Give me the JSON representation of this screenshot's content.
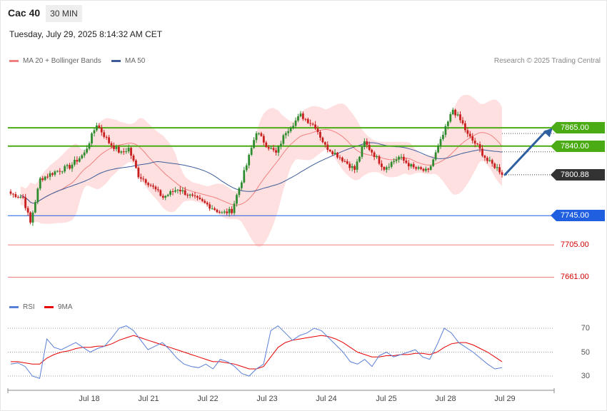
{
  "header": {
    "title": "Cac 40",
    "timeframe": "30 MIN",
    "datetime": "Tuesday, July 29, 2025 8:14:32 AM CET"
  },
  "legend": {
    "ma20": "MA 20 + Bollinger Bands",
    "ma50": "MA 50",
    "credit": "Research © 2025 Trading Central"
  },
  "colors": {
    "up": "#2e8b2e",
    "down": "#c81e1e",
    "band": "#ffe0e0",
    "ma20": "#f08080",
    "ma50": "#3d5c99",
    "resistance": "#4aab14",
    "support": "#1f5fe0",
    "target": "#f08080",
    "arrow": "#2d5fa0",
    "rsi": "#5a7fd6",
    "rsi_ma": "#e60000"
  },
  "chart_data": [
    {
      "type": "candlestick",
      "instrument": "Cac 40",
      "interval": "30 MIN",
      "ylim": [
        7640,
        7945
      ],
      "x_labels": [
        "Jul 18",
        "Jul 21",
        "Jul 22",
        "Jul 23",
        "Jul 24",
        "Jul 25",
        "Jul 28",
        "Jul 29"
      ],
      "levels": [
        {
          "value": 7865.0,
          "label": "7865.00",
          "kind": "resistance"
        },
        {
          "value": 7840.0,
          "label": "7840.00",
          "kind": "resistance"
        },
        {
          "value": 7800.88,
          "label": "7800.88",
          "kind": "last-price"
        },
        {
          "value": 7745.0,
          "label": "7745.00",
          "kind": "support"
        },
        {
          "value": 7705.0,
          "label": "7705.00",
          "kind": "target"
        },
        {
          "value": 7661.0,
          "label": "7661.00",
          "kind": "target"
        }
      ],
      "projection": {
        "from_value": 7800.88,
        "to_value": 7865.0
      },
      "close_path": [
        [
          0,
          7775
        ],
        [
          5,
          7770
        ],
        [
          8,
          7735
        ],
        [
          12,
          7795
        ],
        [
          18,
          7805
        ],
        [
          24,
          7812
        ],
        [
          30,
          7830
        ],
        [
          35,
          7870
        ],
        [
          40,
          7845
        ],
        [
          45,
          7830
        ],
        [
          48,
          7837
        ],
        [
          52,
          7800
        ],
        [
          56,
          7790
        ],
        [
          62,
          7770
        ],
        [
          68,
          7782
        ],
        [
          74,
          7770
        ],
        [
          80,
          7760
        ],
        [
          86,
          7748
        ],
        [
          90,
          7752
        ],
        [
          96,
          7814
        ],
        [
          100,
          7860
        ],
        [
          104,
          7842
        ],
        [
          108,
          7830
        ],
        [
          112,
          7860
        ],
        [
          118,
          7882
        ],
        [
          124,
          7867
        ],
        [
          128,
          7840
        ],
        [
          134,
          7825
        ],
        [
          140,
          7808
        ],
        [
          144,
          7845
        ],
        [
          148,
          7828
        ],
        [
          152,
          7810
        ],
        [
          158,
          7825
        ],
        [
          164,
          7810
        ],
        [
          170,
          7805
        ],
        [
          176,
          7855
        ],
        [
          180,
          7890
        ],
        [
          184,
          7870
        ],
        [
          186,
          7855
        ],
        [
          190,
          7840
        ],
        [
          194,
          7820
        ],
        [
          198,
          7810
        ],
        [
          200,
          7803
        ]
      ]
    },
    {
      "type": "line",
      "title": "RSI",
      "series": [
        {
          "name": "RSI"
        },
        {
          "name": "9MA"
        }
      ],
      "ticks": [
        70,
        50,
        30
      ],
      "ylim": [
        20,
        80
      ],
      "rsi": [
        40,
        41,
        38,
        30,
        28,
        61,
        54,
        52,
        55,
        58,
        54,
        50,
        53,
        55,
        62,
        70,
        72,
        68,
        60,
        52,
        55,
        58,
        52,
        45,
        40,
        38,
        37,
        40,
        36,
        44,
        42,
        38,
        32,
        30,
        36,
        40,
        68,
        72,
        66,
        60,
        64,
        66,
        70,
        68,
        62,
        56,
        50,
        42,
        40,
        44,
        38,
        47,
        50,
        46,
        48,
        50,
        52,
        46,
        44,
        56,
        70,
        66,
        58,
        54,
        50,
        45,
        40,
        36,
        37
      ],
      "rsi_ma": [
        42,
        42,
        41,
        40,
        40,
        45,
        48,
        50,
        51,
        53,
        54,
        54,
        55,
        55,
        57,
        60,
        62,
        64,
        62,
        60,
        58,
        56,
        54,
        52,
        50,
        48,
        46,
        44,
        42,
        42,
        41,
        40,
        38,
        36,
        36,
        38,
        46,
        54,
        58,
        60,
        61,
        62,
        63,
        64,
        63,
        61,
        58,
        54,
        50,
        48,
        46,
        46,
        47,
        47,
        48,
        48,
        49,
        49,
        48,
        50,
        54,
        57,
        58,
        58,
        56,
        53,
        50,
        46,
        42
      ]
    }
  ]
}
